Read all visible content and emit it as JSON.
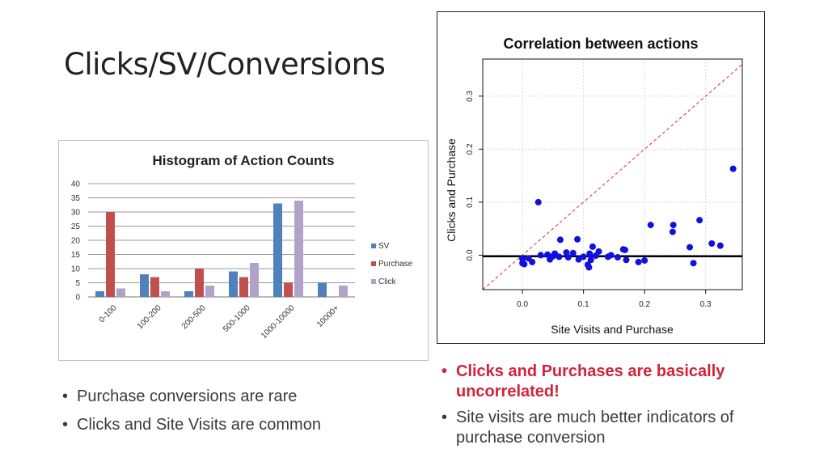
{
  "slide": {
    "title": "Clicks/SV/Conversions"
  },
  "left_bullets": [
    "Purchase conversions are rare",
    "Clicks and Site Visits are common"
  ],
  "right_bullets": [
    {
      "text": "Clicks and Purchases are basically uncorrelated!",
      "highlight": true,
      "color": "#d0243a"
    },
    {
      "text": "Site visits are much better indicators of purchase conversion",
      "highlight": false
    }
  ],
  "chart_data": [
    {
      "type": "bar",
      "title": "Histogram of Action Counts",
      "categories": [
        "0-100",
        "100-200",
        "200-500",
        "500-1000",
        "1000-10000",
        "10000+"
      ],
      "series": [
        {
          "name": "SV",
          "color": "#4f81bd",
          "values": [
            2,
            8,
            2,
            9,
            33,
            5
          ]
        },
        {
          "name": "Purchase",
          "color": "#c0504d",
          "values": [
            30,
            7,
            10,
            7,
            5,
            0
          ]
        },
        {
          "name": "Click",
          "color": "#b3a2c7",
          "values": [
            3,
            2,
            4,
            12,
            34,
            4
          ]
        }
      ],
      "ylim": [
        0,
        40
      ],
      "yticks": [
        0,
        5,
        10,
        15,
        20,
        25,
        30,
        35,
        40
      ],
      "grid": true,
      "legend": "right"
    },
    {
      "type": "scatter",
      "title": "Correlation between actions",
      "xlabel": "Site Visits and Purchase",
      "ylabel": "Clicks and Purchase",
      "xlim": [
        -0.065,
        0.36
      ],
      "ylim": [
        -0.065,
        0.37
      ],
      "xticks": [
        0.0,
        0.1,
        0.2,
        0.3
      ],
      "yticks": [
        0.0,
        0.1,
        0.2,
        0.3
      ],
      "xtick_labels": [
        "0.0",
        "0.1",
        "0.2",
        "0.3"
      ],
      "ytick_labels": [
        "0.0",
        "0.1",
        "0.2",
        "0.3"
      ],
      "point_color": "#1010e0",
      "points": [
        [
          0.026,
          0.1
        ],
        [
          0.345,
          0.163
        ],
        [
          0.29,
          0.066
        ],
        [
          0.247,
          0.057
        ],
        [
          0.21,
          0.057
        ],
        [
          0.246,
          0.044
        ],
        [
          0.31,
          0.022
        ],
        [
          0.324,
          0.018
        ],
        [
          0.274,
          0.015
        ],
        [
          0.062,
          0.029
        ],
        [
          0.09,
          0.03
        ],
        [
          0.115,
          0.016
        ],
        [
          0.165,
          0.011
        ],
        [
          0.168,
          0.01
        ],
        [
          0.125,
          0.007
        ],
        [
          0.072,
          0.005
        ],
        [
          0.083,
          0.004
        ],
        [
          0.11,
          0.003
        ],
        [
          0.053,
          0.003
        ],
        [
          0.041,
          0.001
        ],
        [
          0.03,
          0.0
        ],
        [
          0.145,
          0.0
        ],
        [
          0.12,
          -0.001
        ],
        [
          0.05,
          -0.002
        ],
        [
          0.06,
          -0.003
        ],
        [
          0.1,
          -0.003
        ],
        [
          0.075,
          -0.004
        ],
        [
          0.14,
          -0.003
        ],
        [
          0.156,
          -0.004
        ],
        [
          0.0,
          -0.007
        ],
        [
          0.01,
          -0.006
        ],
        [
          0.045,
          -0.008
        ],
        [
          0.092,
          -0.008
        ],
        [
          0.112,
          -0.009
        ],
        [
          0.17,
          -0.009
        ],
        [
          0.2,
          -0.01
        ],
        [
          0.19,
          -0.013
        ],
        [
          0.0,
          -0.015
        ],
        [
          0.003,
          -0.017
        ],
        [
          0.016,
          -0.013
        ],
        [
          0.107,
          -0.018
        ],
        [
          0.109,
          -0.023
        ],
        [
          0.28,
          -0.015
        ]
      ],
      "reference_line": {
        "slope": 1,
        "intercept": 0,
        "style": "dashed",
        "color": "#d9534f"
      },
      "fit_line": {
        "slope": 0,
        "intercept": -0.002,
        "style": "solid",
        "color": "#000000"
      }
    }
  ]
}
